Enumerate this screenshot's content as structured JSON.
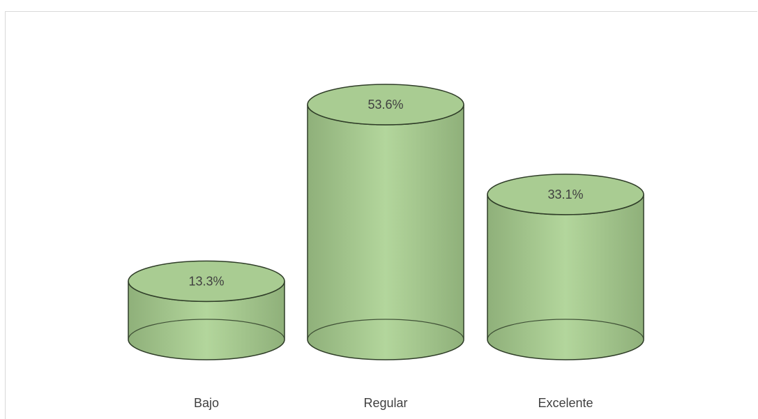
{
  "chart_data": {
    "type": "bar",
    "style": "3d-cylinder",
    "categories": [
      "Bajo",
      "Regular",
      "Excelente"
    ],
    "values": [
      13.3,
      53.6,
      33.1
    ],
    "value_labels": [
      "13.3%",
      "53.6%",
      "33.1%"
    ],
    "title": "",
    "xlabel": "",
    "ylabel": "",
    "ylim": [
      0,
      60
    ],
    "grid": false,
    "legend": "none",
    "colors": {
      "fill_light": "#b3d69c",
      "fill_dark": "#8fb07a",
      "top_fill": "#a9cc92",
      "outline": "#2f3d28"
    }
  }
}
